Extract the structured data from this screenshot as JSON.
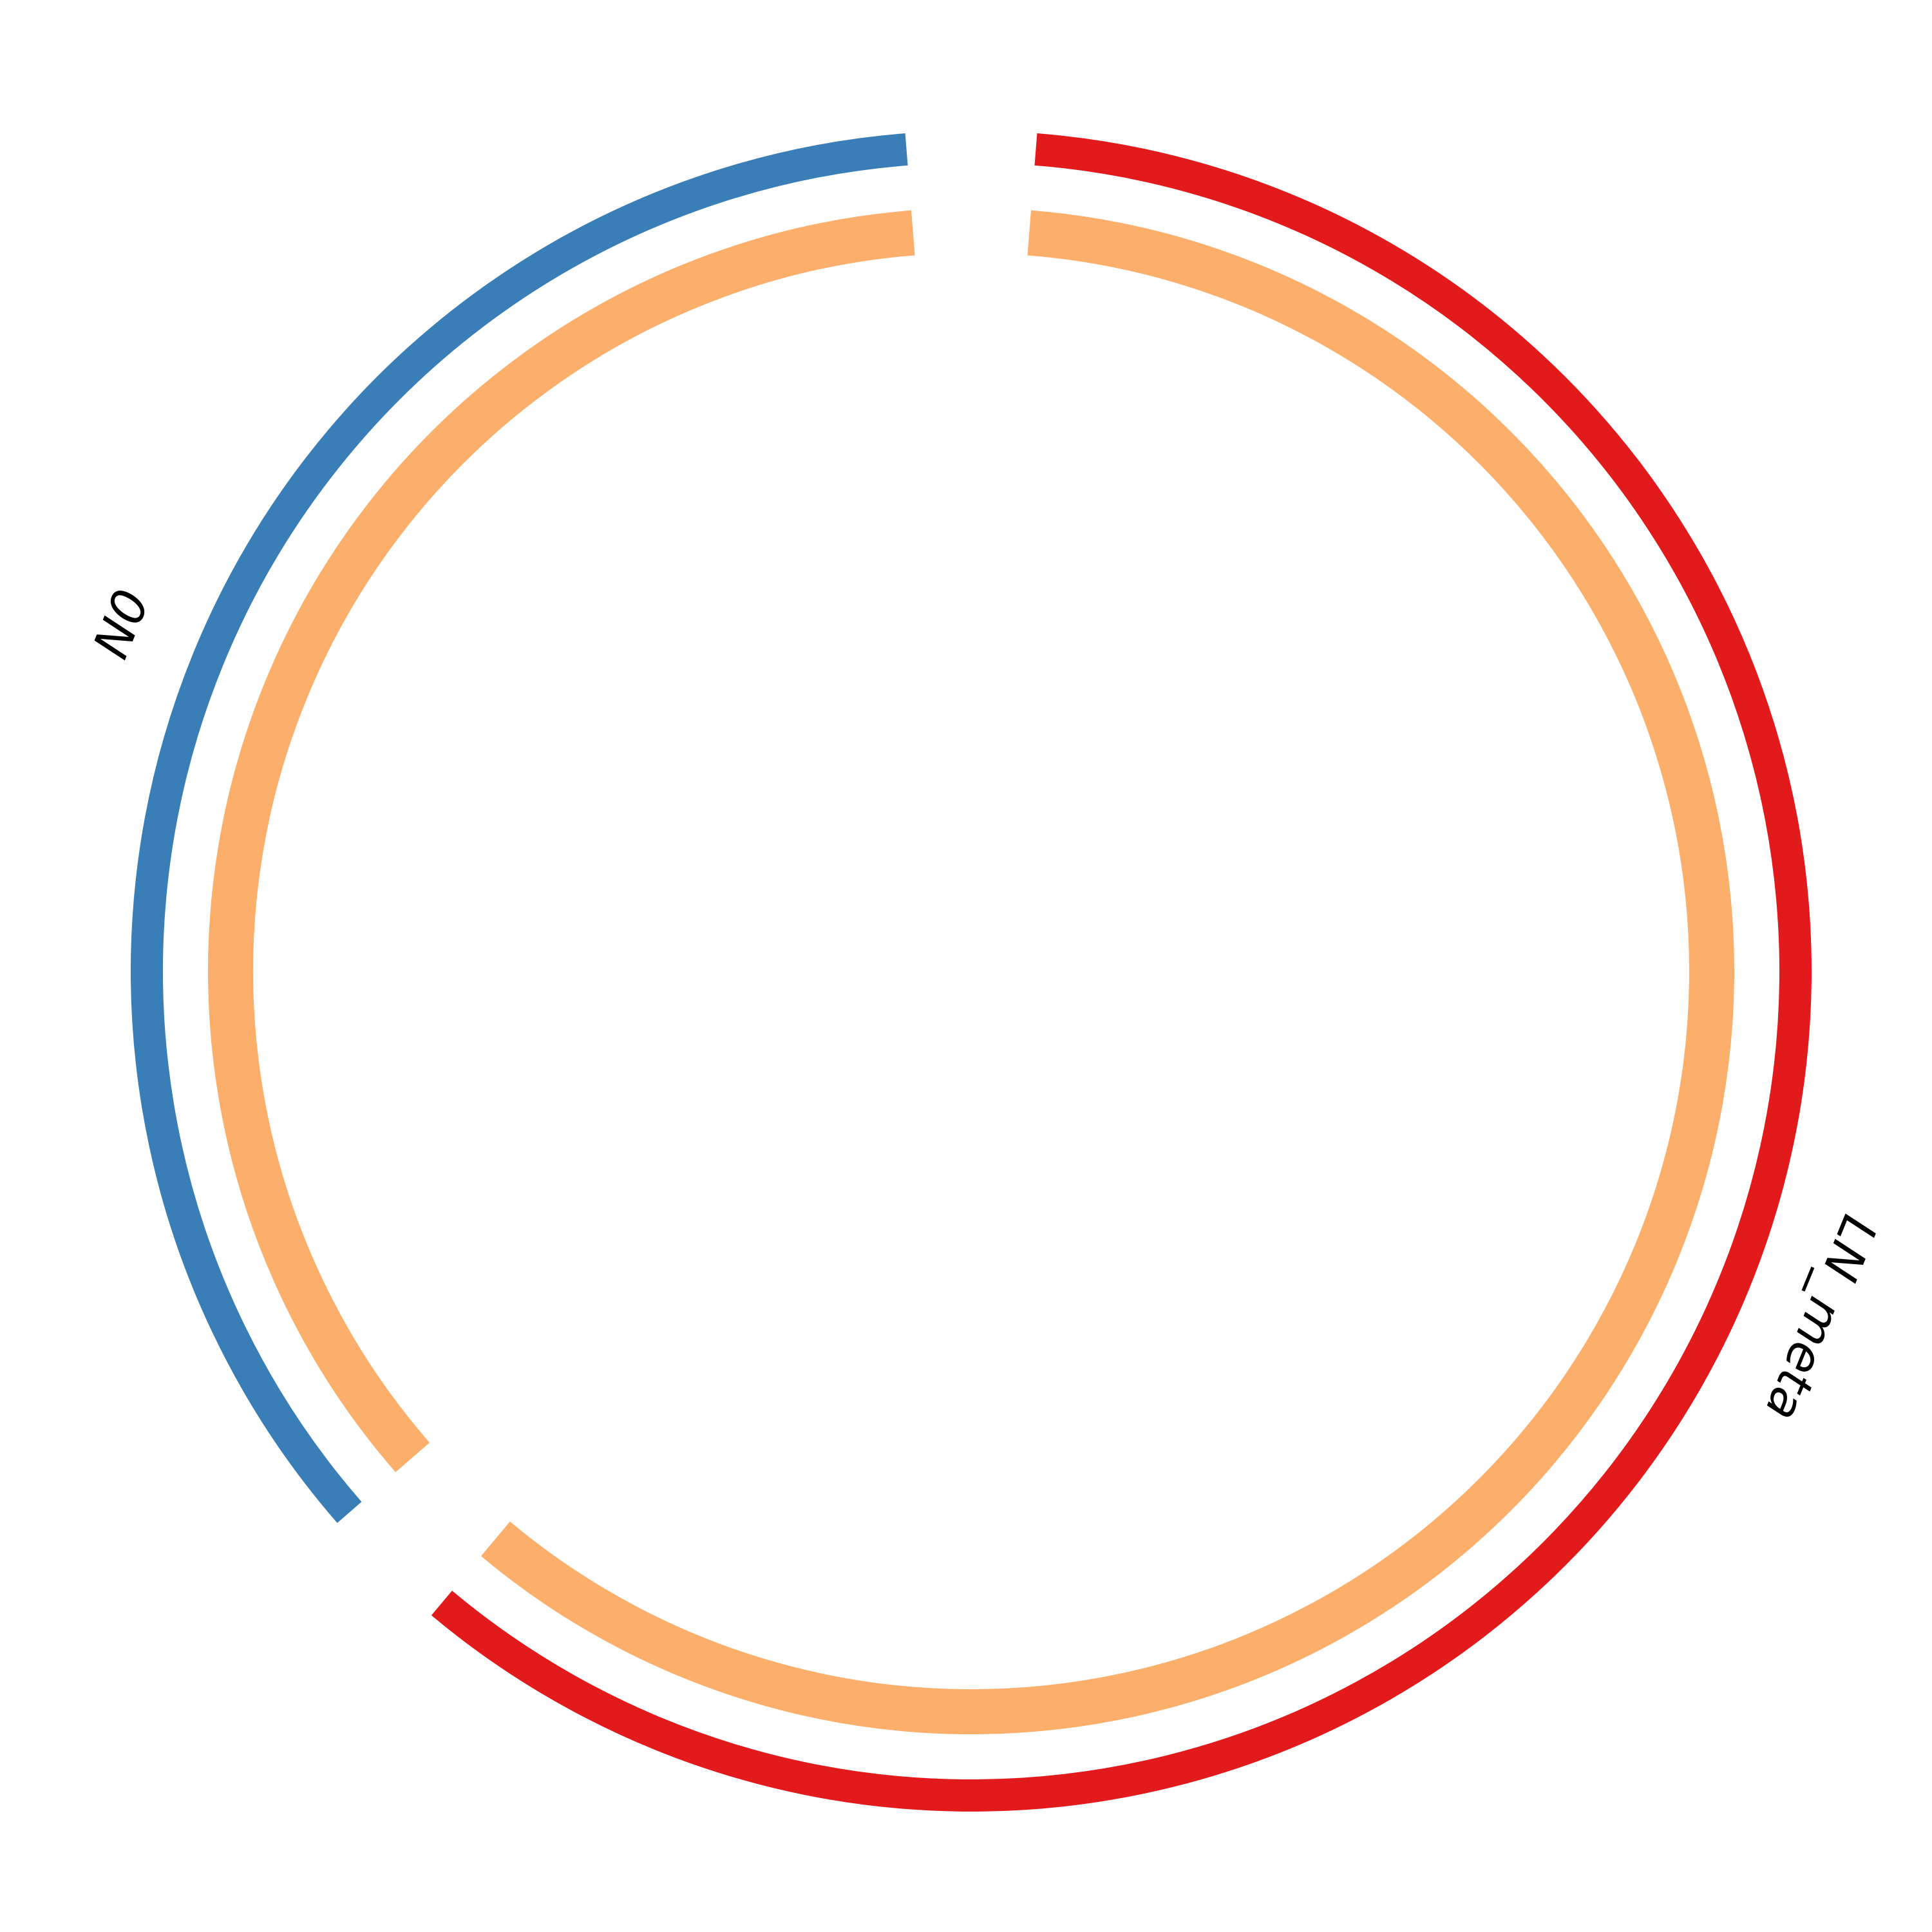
{
  "chart_data": {
    "type": "chord",
    "sectors": [
      {
        "name": "N0",
        "value": 0.37,
        "color": "#3A7EB8"
      },
      {
        "name": "LN_meta",
        "value": 0.63,
        "color": "#E31A1C"
      }
    ],
    "links": [
      {
        "from": "N0",
        "to": "LN_meta",
        "color": "#FCAE6B"
      }
    ],
    "start_angle_deg": 90,
    "direction": "clockwise"
  }
}
